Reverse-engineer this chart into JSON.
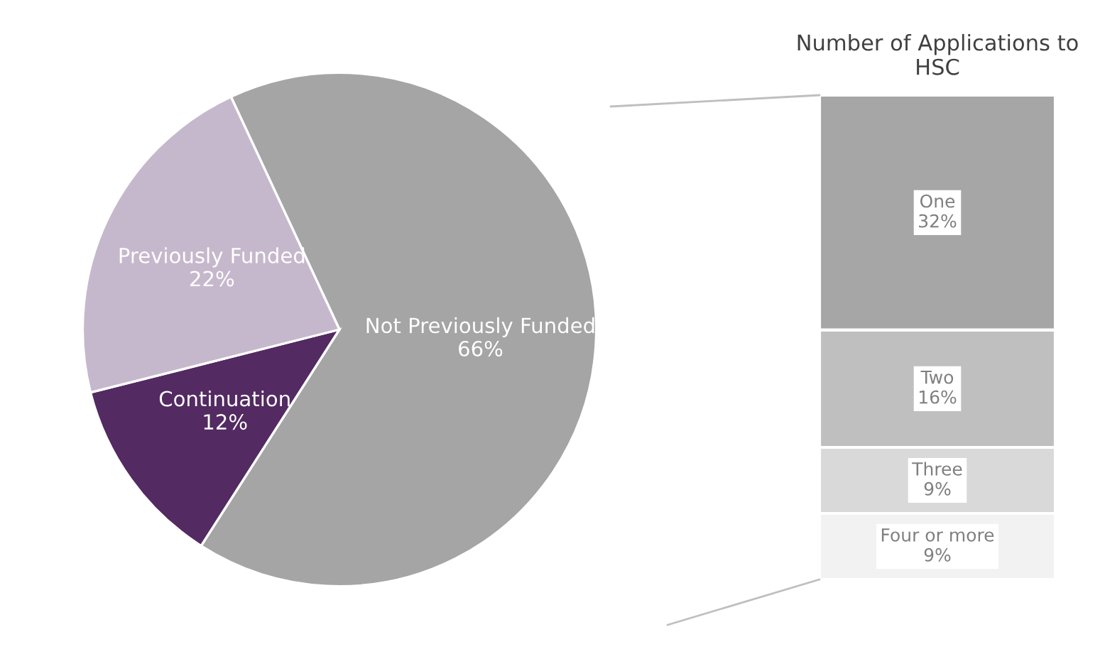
{
  "chart_data": [
    {
      "type": "pie",
      "categories": [
        "Not Previously Funded",
        "Continuation",
        "Previously Funded"
      ],
      "values": [
        66,
        12,
        22
      ],
      "colors": [
        "#a5a5a5",
        "#532a62",
        "#c6b8cc"
      ],
      "value_labels": [
        "66%",
        "12%",
        "22%"
      ]
    },
    {
      "type": "bar",
      "title": "Number of Applications to HSC",
      "stacked": true,
      "categories": [
        null
      ],
      "series": [
        {
          "name": "Four or more",
          "color": "#f2f2f2",
          "values": [
            9
          ],
          "value_labels": [
            "9%"
          ]
        },
        {
          "name": "Three",
          "color": "#d9d9d9",
          "values": [
            9
          ],
          "value_labels": [
            "9%"
          ]
        },
        {
          "name": "Two",
          "color": "#bfbfbf",
          "values": [
            16
          ],
          "value_labels": [
            "16%"
          ]
        },
        {
          "name": "One",
          "color": "#a6a6a6",
          "values": [
            32
          ],
          "value_labels": [
            "32%"
          ]
        }
      ]
    }
  ]
}
